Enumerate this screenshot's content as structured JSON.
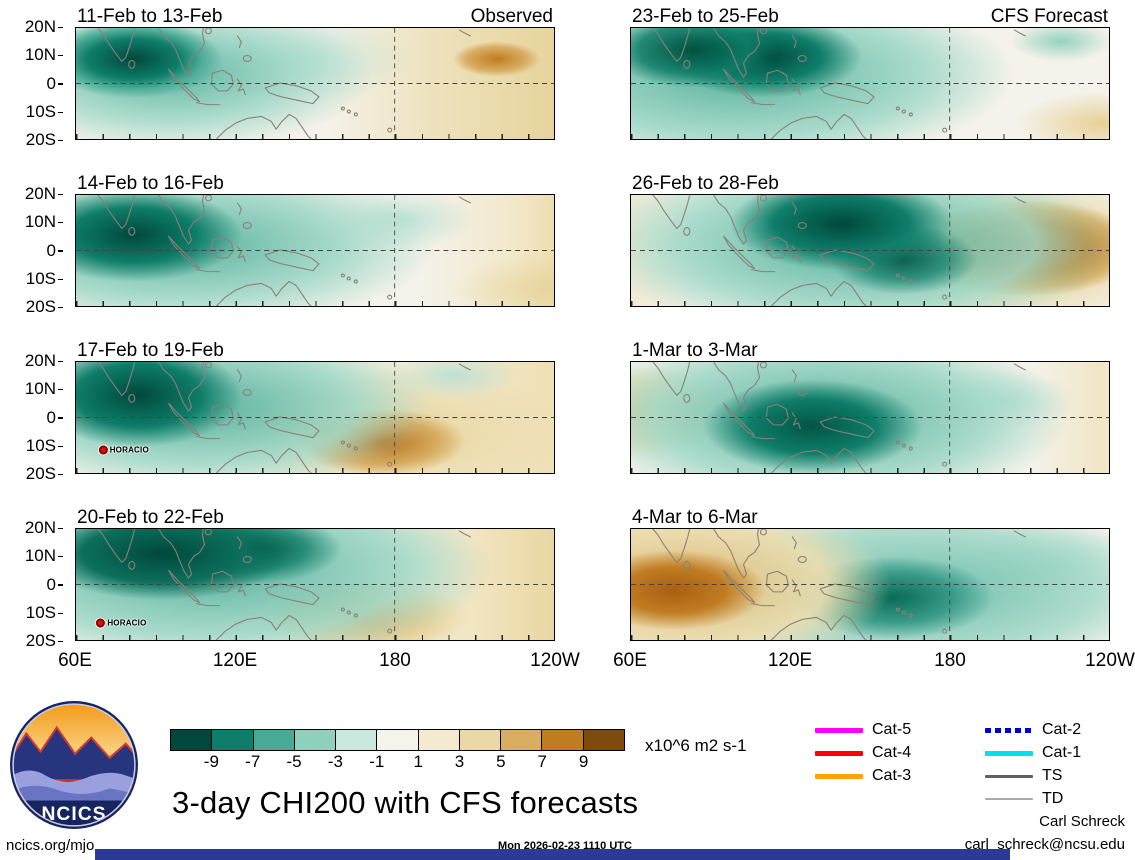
{
  "title": "3-day CHI200 with CFS forecasts",
  "columns": {
    "left": "Observed",
    "right": "CFS Forecast"
  },
  "axes": {
    "lat": [
      "20N",
      "10N",
      "0",
      "10S",
      "20S"
    ],
    "lon": [
      "60E",
      "120E",
      "180",
      "120W"
    ]
  },
  "panels": [
    {
      "title": "11-Feb to 13-Feb",
      "corner": "Observed",
      "storm": ""
    },
    {
      "title": "14-Feb to 16-Feb",
      "corner": "",
      "storm": ""
    },
    {
      "title": "17-Feb to 19-Feb",
      "corner": "",
      "storm": "HORACIO"
    },
    {
      "title": "20-Feb to 22-Feb",
      "corner": "",
      "storm": "HORACIO"
    },
    {
      "title": "23-Feb to 25-Feb",
      "corner": "CFS Forecast",
      "storm": ""
    },
    {
      "title": "26-Feb to 28-Feb",
      "corner": "",
      "storm": ""
    },
    {
      "title": "1-Mar to 3-Mar",
      "corner": "",
      "storm": ""
    },
    {
      "title": "4-Mar to 6-Mar",
      "corner": "",
      "storm": ""
    }
  ],
  "colorbar": {
    "ticks": [
      "-9",
      "-7",
      "-5",
      "-3",
      "-1",
      "1",
      "3",
      "5",
      "7",
      "9"
    ],
    "colors": [
      "#00483c",
      "#0e7d69",
      "#49ab96",
      "#8fd0bd",
      "#c9e8de",
      "#f5f4ec",
      "#f4ead0",
      "#ead9a6",
      "#d9ae63",
      "#c07c22",
      "#7e4a0e"
    ],
    "units": "x10^6 m2 s-1"
  },
  "legend": {
    "col1": [
      {
        "label": "Cat-5",
        "color": "#ff00ff",
        "weight": 5,
        "dashed": false
      },
      {
        "label": "Cat-4",
        "color": "#ff0000",
        "weight": 5,
        "dashed": false
      },
      {
        "label": "Cat-3",
        "color": "#ffa500",
        "weight": 5,
        "dashed": false
      }
    ],
    "col2": [
      {
        "label": "Cat-2",
        "color": "#0000cc",
        "weight": 5,
        "dashed": true
      },
      {
        "label": "Cat-1",
        "color": "#00e0ee",
        "weight": 5,
        "dashed": false
      },
      {
        "label": "TS",
        "color": "#606060",
        "weight": 3,
        "dashed": false
      },
      {
        "label": "TD",
        "color": "#aaaaaa",
        "weight": 1.5,
        "dashed": false
      }
    ]
  },
  "logo": {
    "text": "NCICS"
  },
  "footer": {
    "left": "ncics.org/mjo",
    "center": "Mon 2026-02-23 1110 UTC",
    "credit_name": "Carl Schreck",
    "credit_email": "carl_schreck@ncsu.edu"
  },
  "chart_data": {
    "type": "heatmap",
    "subtype": "filled-contour longitude-latitude anomaly maps, 2 columns x 4 rows",
    "variable": "3-day mean CHI200 (200 hPa velocity potential) anomaly",
    "units": "x10^6 m2 s-1",
    "contour_levels": [
      -9,
      -7,
      -5,
      -3,
      -1,
      1,
      3,
      5,
      7,
      9
    ],
    "palette": [
      "#00483c",
      "#0e7d69",
      "#49ab96",
      "#8fd0bd",
      "#c9e8de",
      "#f5f4ec",
      "#f4ead0",
      "#ead9a6",
      "#d9ae63",
      "#c07c22",
      "#7e4a0e"
    ],
    "lon_domain_deg_east": [
      60,
      240
    ],
    "lat_domain_deg": [
      -20,
      20
    ],
    "x_tick_labels": [
      "60E",
      "120E",
      "180",
      "120W"
    ],
    "y_tick_labels": [
      "20N",
      "10N",
      "0",
      "10S",
      "20S"
    ],
    "reference_lines": {
      "equator_dashed": true,
      "dateline_dashed": true
    },
    "columns": [
      "Observed",
      "CFS Forecast"
    ],
    "panels": [
      {
        "title": "11-Feb to 13-Feb",
        "column": "Observed",
        "negative_center": "85E, 8N",
        "positive_center": "215E, 5N",
        "storms": []
      },
      {
        "title": "14-Feb to 16-Feb",
        "column": "Observed",
        "negative_center": "83E, 5N",
        "positive_center": "238E, 15S",
        "storms": []
      },
      {
        "title": "17-Feb to 19-Feb",
        "column": "Observed",
        "negative_center": "83E, 8N",
        "positive_center": "175E, 10S",
        "storms": [
          "HORACIO near 75E, 12S"
        ]
      },
      {
        "title": "20-Feb to 22-Feb",
        "column": "Observed",
        "negative_center": "95E, 12N",
        "positive_center": "170E, 12S",
        "storms": [
          "HORACIO near 75E, 13S"
        ]
      },
      {
        "title": "23-Feb to 25-Feb",
        "column": "CFS Forecast",
        "negative_center": "105E, 10N",
        "positive_center": "238E, 15S",
        "storms": []
      },
      {
        "title": "26-Feb to 28-Feb",
        "column": "CFS Forecast",
        "negative_center": "140E, 8N",
        "positive_center": "210E, 0",
        "storms": []
      },
      {
        "title": "1-Mar to 3-Mar",
        "column": "CFS Forecast",
        "negative_center": "130E, 3S",
        "positive_center": "65E, 0",
        "storms": []
      },
      {
        "title": "4-Mar to 6-Mar",
        "column": "CFS Forecast",
        "negative_center": "160E, 5S",
        "positive_center": "77E, 2S",
        "storms": []
      }
    ]
  }
}
